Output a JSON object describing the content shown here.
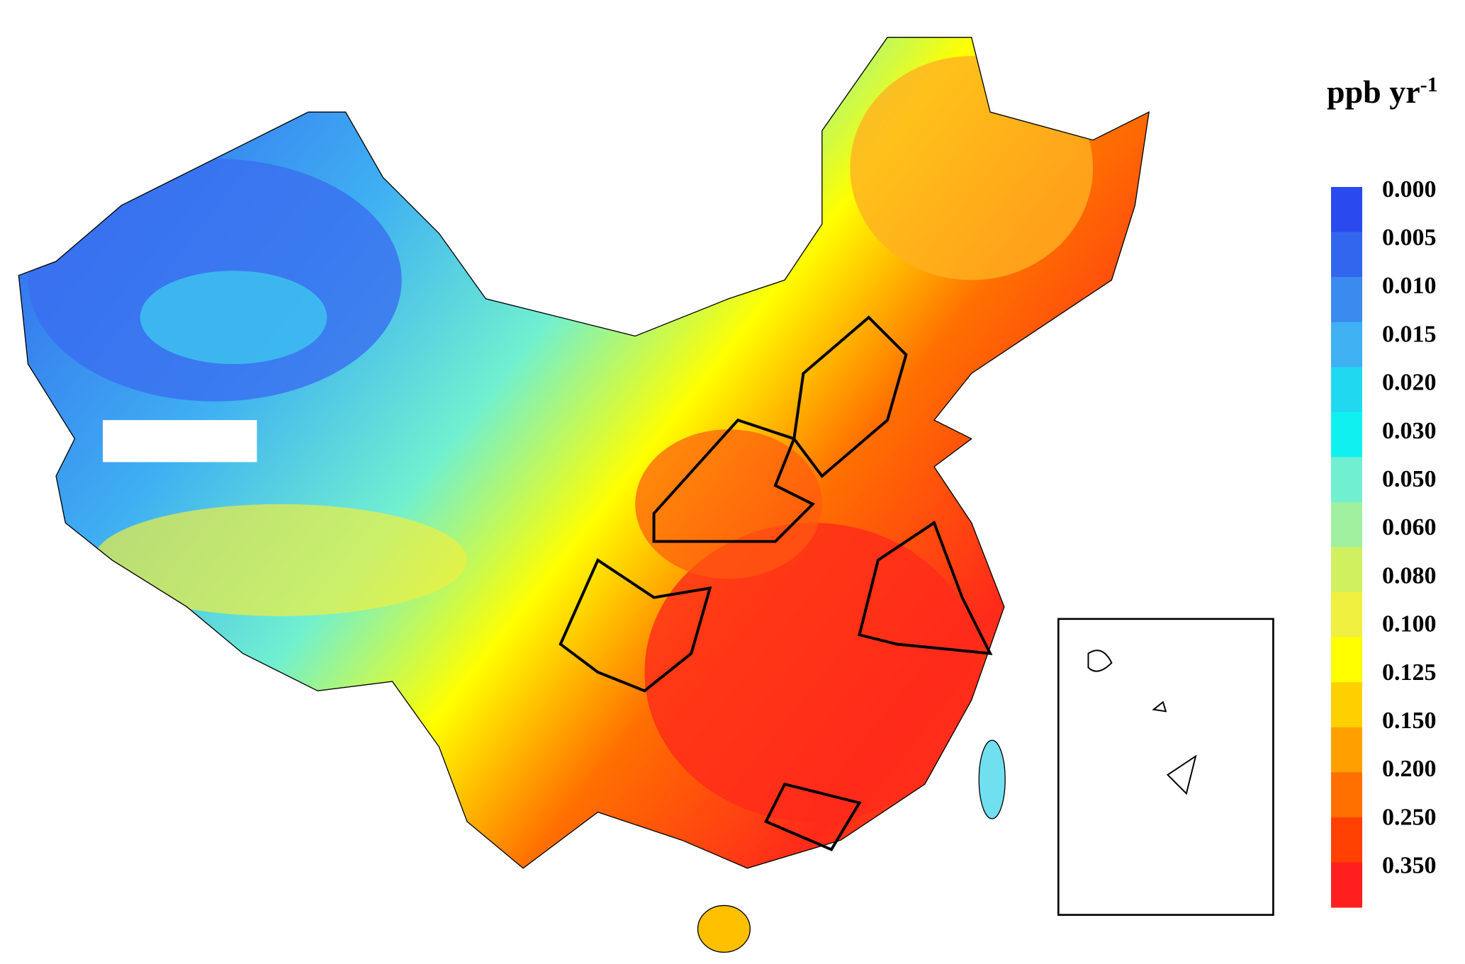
{
  "legend": {
    "title": "ppb yr",
    "title_superscript": "-1",
    "labels": [
      "0.000",
      "0.005",
      "0.010",
      "0.015",
      "0.020",
      "0.030",
      "0.050",
      "0.060",
      "0.080",
      "0.100",
      "0.125",
      "0.150",
      "0.200",
      "0.250",
      "0.350"
    ],
    "colors": [
      "#2a4af0",
      "#3366ee",
      "#3a8af0",
      "#3fb0f2",
      "#20d8f0",
      "#10f0f0",
      "#70f0d0",
      "#a0f0a0",
      "#d0f060",
      "#f0f040",
      "#ffff00",
      "#ffd000",
      "#ffa000",
      "#ff7000",
      "#ff4000",
      "#ff1f1f"
    ]
  }
}
